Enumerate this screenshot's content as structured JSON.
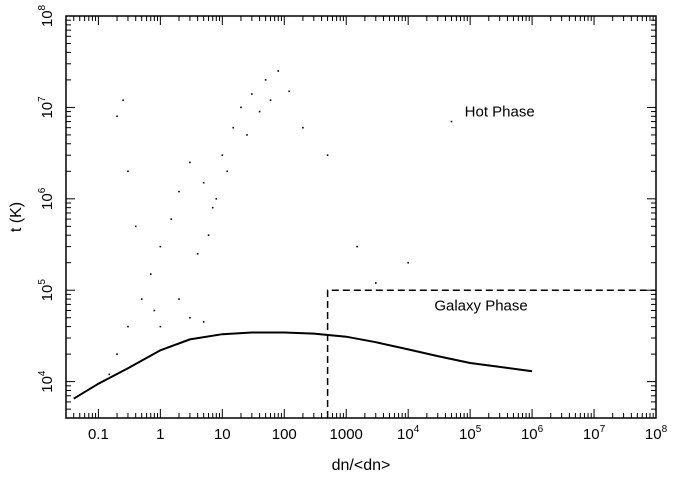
{
  "chart_data": {
    "type": "scatter",
    "title": "",
    "xlabel": "dn/<dn>",
    "ylabel": "t (K)",
    "x_scale": "log",
    "y_scale": "log",
    "xlim": [
      0.03,
      100000000
    ],
    "ylim": [
      4000,
      100000000
    ],
    "grid": false,
    "x_ticks": [
      {
        "value": 0.1,
        "base": "0.1",
        "exp": ""
      },
      {
        "value": 1,
        "base": "1",
        "exp": ""
      },
      {
        "value": 10,
        "base": "10",
        "exp": ""
      },
      {
        "value": 100,
        "base": "100",
        "exp": ""
      },
      {
        "value": 1000,
        "base": "1000",
        "exp": ""
      },
      {
        "value": 10000,
        "base": "10",
        "exp": "4"
      },
      {
        "value": 100000,
        "base": "10",
        "exp": "5"
      },
      {
        "value": 1000000,
        "base": "10",
        "exp": "6"
      },
      {
        "value": 10000000,
        "base": "10",
        "exp": "7"
      },
      {
        "value": 100000000,
        "base": "10",
        "exp": "8"
      }
    ],
    "y_ticks": [
      {
        "value": 10000,
        "base": "10",
        "exp": "4"
      },
      {
        "value": 100000,
        "base": "10",
        "exp": "5"
      },
      {
        "value": 1000000,
        "base": "10",
        "exp": "6"
      },
      {
        "value": 10000000,
        "base": "10",
        "exp": "7"
      },
      {
        "value": 100000000,
        "base": "10",
        "exp": "8"
      }
    ],
    "annotations": [
      {
        "text": "Hot Phase",
        "x": 300000,
        "y": 8000000
      },
      {
        "text": "Galaxy Phase",
        "x": 150000,
        "y": 60000
      }
    ],
    "region_boundary": {
      "style": "dashed",
      "x": [
        500,
        500,
        100000000
      ],
      "y": [
        4000,
        100000,
        100000
      ]
    },
    "equilibrium_curve": {
      "x": [
        0.04,
        0.1,
        0.3,
        1,
        3,
        10,
        30,
        100,
        300,
        1000,
        3000,
        10000,
        30000,
        100000,
        300000,
        1000000
      ],
      "y": [
        6500,
        9500,
        14000,
        22000,
        29000,
        33000,
        34500,
        34500,
        33500,
        31000,
        27000,
        22500,
        19000,
        16000,
        14500,
        13000
      ]
    },
    "series": [
      {
        "points": [
          [
            0.15,
            12000
          ],
          [
            0.2,
            20000
          ],
          [
            0.3,
            40000
          ],
          [
            0.5,
            80000
          ],
          [
            0.7,
            150000
          ],
          [
            1,
            300000
          ],
          [
            1.5,
            600000
          ],
          [
            2,
            1200000
          ],
          [
            3,
            2500000
          ],
          [
            5,
            1500000
          ],
          [
            7,
            800000
          ],
          [
            10,
            3000000
          ],
          [
            15,
            6000000
          ],
          [
            20,
            10000000
          ],
          [
            30,
            14000000
          ],
          [
            50,
            20000000
          ],
          [
            80,
            25000000
          ],
          [
            120,
            15000000
          ],
          [
            2,
            80000
          ],
          [
            3,
            50000
          ],
          [
            5,
            45000
          ],
          [
            1,
            40000
          ],
          [
            0.8,
            60000
          ],
          [
            4,
            250000
          ],
          [
            6,
            400000
          ],
          [
            8,
            1000000
          ],
          [
            12,
            2000000
          ],
          [
            25,
            5000000
          ],
          [
            40,
            9000000
          ],
          [
            60,
            12000000
          ],
          [
            0.4,
            500000
          ],
          [
            0.3,
            2000000
          ],
          [
            0.2,
            8000000
          ],
          [
            0.25,
            12000000
          ],
          [
            200,
            6000000
          ],
          [
            500,
            3000000
          ],
          [
            1500,
            300000
          ],
          [
            3000,
            120000
          ],
          [
            10000,
            200000
          ],
          [
            50000,
            7000000
          ]
        ]
      }
    ]
  }
}
